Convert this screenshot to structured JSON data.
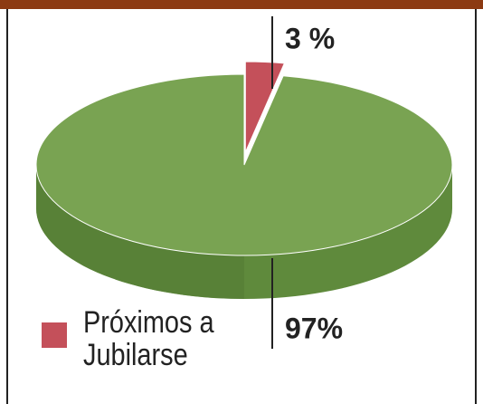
{
  "chart_data": {
    "type": "pie",
    "categories": [
      "Próximos a Jubilarse",
      null
    ],
    "values": [
      3,
      97
    ],
    "value_labels": [
      "3 %",
      "97%"
    ],
    "colors": [
      "#c4505a",
      "#79a352"
    ],
    "legend": "bottom-left"
  }
}
